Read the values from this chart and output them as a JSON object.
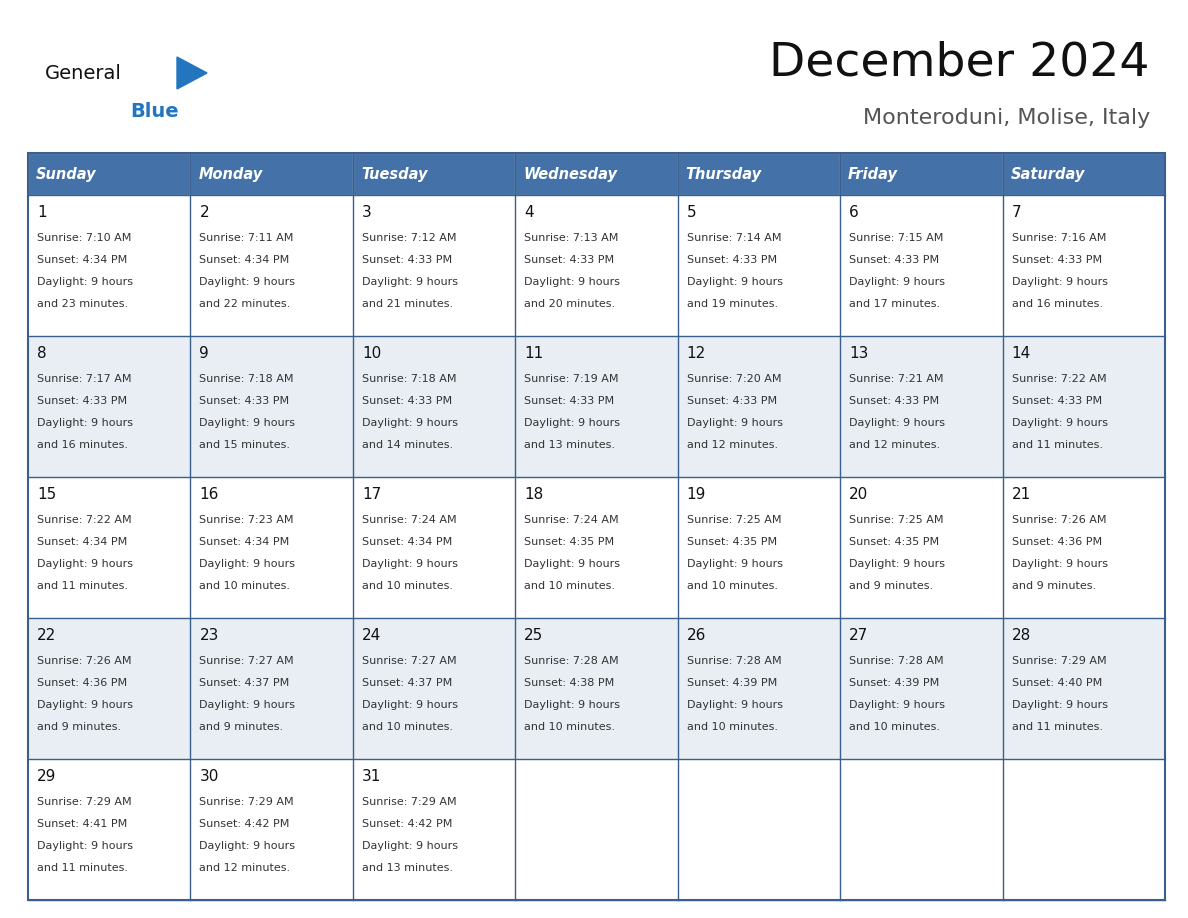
{
  "title": "December 2024",
  "subtitle": "Monteroduni, Molise, Italy",
  "days_of_week": [
    "Sunday",
    "Monday",
    "Tuesday",
    "Wednesday",
    "Thursday",
    "Friday",
    "Saturday"
  ],
  "header_bg": "#4472A8",
  "header_text": "#FFFFFF",
  "cell_bg_odd": "#FFFFFF",
  "cell_bg_even": "#E8EEF4",
  "border_color": "#3A5F8A",
  "text_color": "#333333",
  "day_num_color": "#111111",
  "logo_general_color": "#111111",
  "logo_blue_color": "#2375C0",
  "logo_triangle_color": "#2375C0",
  "calendar_data": [
    [
      {
        "day": 1,
        "sunrise": "7:10 AM",
        "sunset": "4:34 PM",
        "dl_suffix": "23 minutes."
      },
      {
        "day": 2,
        "sunrise": "7:11 AM",
        "sunset": "4:34 PM",
        "dl_suffix": "22 minutes."
      },
      {
        "day": 3,
        "sunrise": "7:12 AM",
        "sunset": "4:33 PM",
        "dl_suffix": "21 minutes."
      },
      {
        "day": 4,
        "sunrise": "7:13 AM",
        "sunset": "4:33 PM",
        "dl_suffix": "20 minutes."
      },
      {
        "day": 5,
        "sunrise": "7:14 AM",
        "sunset": "4:33 PM",
        "dl_suffix": "19 minutes."
      },
      {
        "day": 6,
        "sunrise": "7:15 AM",
        "sunset": "4:33 PM",
        "dl_suffix": "17 minutes."
      },
      {
        "day": 7,
        "sunrise": "7:16 AM",
        "sunset": "4:33 PM",
        "dl_suffix": "16 minutes."
      }
    ],
    [
      {
        "day": 8,
        "sunrise": "7:17 AM",
        "sunset": "4:33 PM",
        "dl_suffix": "16 minutes."
      },
      {
        "day": 9,
        "sunrise": "7:18 AM",
        "sunset": "4:33 PM",
        "dl_suffix": "15 minutes."
      },
      {
        "day": 10,
        "sunrise": "7:18 AM",
        "sunset": "4:33 PM",
        "dl_suffix": "14 minutes."
      },
      {
        "day": 11,
        "sunrise": "7:19 AM",
        "sunset": "4:33 PM",
        "dl_suffix": "13 minutes."
      },
      {
        "day": 12,
        "sunrise": "7:20 AM",
        "sunset": "4:33 PM",
        "dl_suffix": "12 minutes."
      },
      {
        "day": 13,
        "sunrise": "7:21 AM",
        "sunset": "4:33 PM",
        "dl_suffix": "12 minutes."
      },
      {
        "day": 14,
        "sunrise": "7:22 AM",
        "sunset": "4:33 PM",
        "dl_suffix": "11 minutes."
      }
    ],
    [
      {
        "day": 15,
        "sunrise": "7:22 AM",
        "sunset": "4:34 PM",
        "dl_suffix": "11 minutes."
      },
      {
        "day": 16,
        "sunrise": "7:23 AM",
        "sunset": "4:34 PM",
        "dl_suffix": "10 minutes."
      },
      {
        "day": 17,
        "sunrise": "7:24 AM",
        "sunset": "4:34 PM",
        "dl_suffix": "10 minutes."
      },
      {
        "day": 18,
        "sunrise": "7:24 AM",
        "sunset": "4:35 PM",
        "dl_suffix": "10 minutes."
      },
      {
        "day": 19,
        "sunrise": "7:25 AM",
        "sunset": "4:35 PM",
        "dl_suffix": "10 minutes."
      },
      {
        "day": 20,
        "sunrise": "7:25 AM",
        "sunset": "4:35 PM",
        "dl_suffix": "9 minutes."
      },
      {
        "day": 21,
        "sunrise": "7:26 AM",
        "sunset": "4:36 PM",
        "dl_suffix": "9 minutes."
      }
    ],
    [
      {
        "day": 22,
        "sunrise": "7:26 AM",
        "sunset": "4:36 PM",
        "dl_suffix": "9 minutes."
      },
      {
        "day": 23,
        "sunrise": "7:27 AM",
        "sunset": "4:37 PM",
        "dl_suffix": "9 minutes."
      },
      {
        "day": 24,
        "sunrise": "7:27 AM",
        "sunset": "4:37 PM",
        "dl_suffix": "10 minutes."
      },
      {
        "day": 25,
        "sunrise": "7:28 AM",
        "sunset": "4:38 PM",
        "dl_suffix": "10 minutes."
      },
      {
        "day": 26,
        "sunrise": "7:28 AM",
        "sunset": "4:39 PM",
        "dl_suffix": "10 minutes."
      },
      {
        "day": 27,
        "sunrise": "7:28 AM",
        "sunset": "4:39 PM",
        "dl_suffix": "10 minutes."
      },
      {
        "day": 28,
        "sunrise": "7:29 AM",
        "sunset": "4:40 PM",
        "dl_suffix": "11 minutes."
      }
    ],
    [
      {
        "day": 29,
        "sunrise": "7:29 AM",
        "sunset": "4:41 PM",
        "dl_suffix": "11 minutes."
      },
      {
        "day": 30,
        "sunrise": "7:29 AM",
        "sunset": "4:42 PM",
        "dl_suffix": "12 minutes."
      },
      {
        "day": 31,
        "sunrise": "7:29 AM",
        "sunset": "4:42 PM",
        "dl_suffix": "13 minutes."
      },
      null,
      null,
      null,
      null
    ]
  ]
}
